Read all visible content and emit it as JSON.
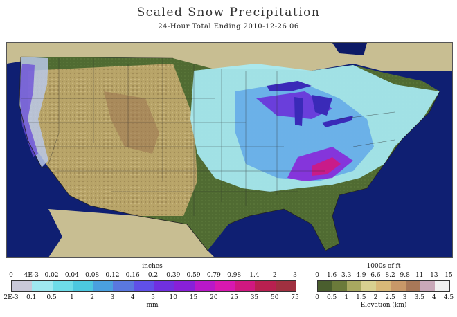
{
  "header": {
    "title": "Scaled Snow Precipitation",
    "subtitle": "24-Hour Total Ending 2010-12-26 06"
  },
  "precip_legend": {
    "top_unit": "inches",
    "bottom_unit": "mm",
    "top_ticks": [
      "0",
      "4E-3",
      "0.02",
      "0.04",
      "0.08",
      "0.12",
      "0.16",
      "0.2",
      "0.39",
      "0.59",
      "0.79",
      "0.98",
      "1.4",
      "2",
      "3"
    ],
    "bottom_ticks": [
      "2E-3",
      "0.1",
      "0.5",
      "1",
      "2",
      "3",
      "4",
      "5",
      "10",
      "15",
      "20",
      "25",
      "35",
      "50",
      "75"
    ],
    "colors": [
      "#c8c8d8",
      "#9fe8f0",
      "#6edce8",
      "#4cc8e0",
      "#4aa0e0",
      "#5a78e0",
      "#6050e8",
      "#7030e0",
      "#8820d8",
      "#b818c8",
      "#d818b0",
      "#d01880",
      "#b82050",
      "#a03040"
    ]
  },
  "elev_legend": {
    "top_unit": "1000s of ft",
    "bottom_unit": "Elevation (km)",
    "top_ticks": [
      "0",
      "1.6",
      "3.3",
      "4.9",
      "6.6",
      "8.2",
      "9.8",
      "11",
      "13",
      "15"
    ],
    "bottom_ticks": [
      "0",
      "0.5",
      "1",
      "1.5",
      "2",
      "2.5",
      "3",
      "3.5",
      "4",
      "4.5"
    ],
    "colors": [
      "#4a5e2e",
      "#6b7a3a",
      "#a8a860",
      "#d8d090",
      "#d8b878",
      "#c89868",
      "#a87858",
      "#c8a8b8",
      "#f0f0f0"
    ]
  },
  "map": {
    "water_color": "#0d1a66",
    "land_low_color": "#4f6a32",
    "land_high_color": "#c8b07a",
    "snow_light_color": "#a8ecf4",
    "snow_heavy_color": "#6a2ad8"
  }
}
